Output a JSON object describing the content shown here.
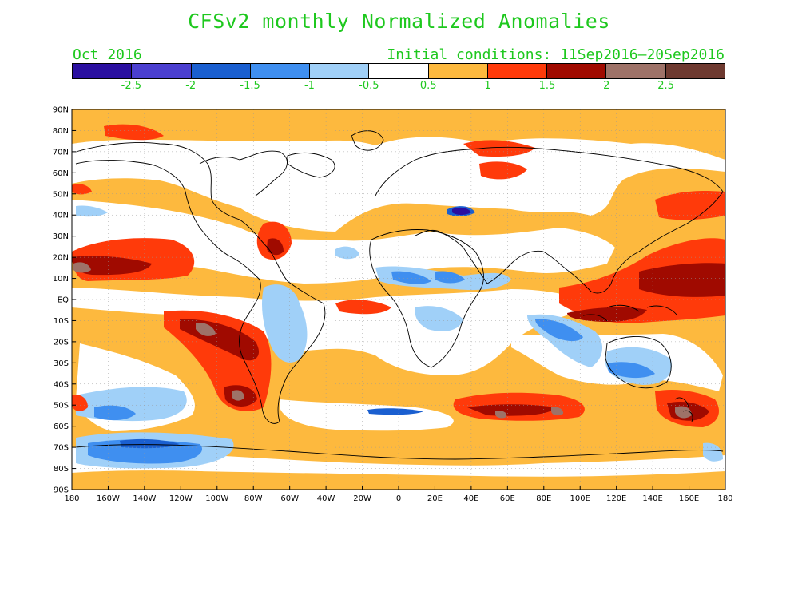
{
  "title": "CFSv2 monthly Normalized Anomalies",
  "month_label": "Oct 2016",
  "initial_conditions": "Initial conditions: 11Sep2016–20Sep2016",
  "colorbar": {
    "colors": [
      "#2a0fa0",
      "#4b3fd0",
      "#1a5fd0",
      "#3f8ff0",
      "#a0d0f8",
      "#ffffff",
      "#fdb93e",
      "#ff3a0a",
      "#a00a00",
      "#9e7268",
      "#6e3a30"
    ],
    "tick_labels": [
      "-2.5",
      "-2",
      "-1.5",
      "-1",
      "-0.5",
      "0.5",
      "1",
      "1.5",
      "2",
      "2.5"
    ]
  },
  "map": {
    "lat_labels": [
      "90N",
      "80N",
      "70N",
      "60N",
      "50N",
      "40N",
      "30N",
      "20N",
      "10N",
      "EQ",
      "10S",
      "20S",
      "30S",
      "40S",
      "50S",
      "60S",
      "70S",
      "80S",
      "90S"
    ],
    "lon_labels": [
      "180",
      "160W",
      "140W",
      "120W",
      "100W",
      "80W",
      "60W",
      "40W",
      "20W",
      "0",
      "20E",
      "40E",
      "60E",
      "80E",
      "100E",
      "120E",
      "140E",
      "160E",
      "180"
    ]
  }
}
